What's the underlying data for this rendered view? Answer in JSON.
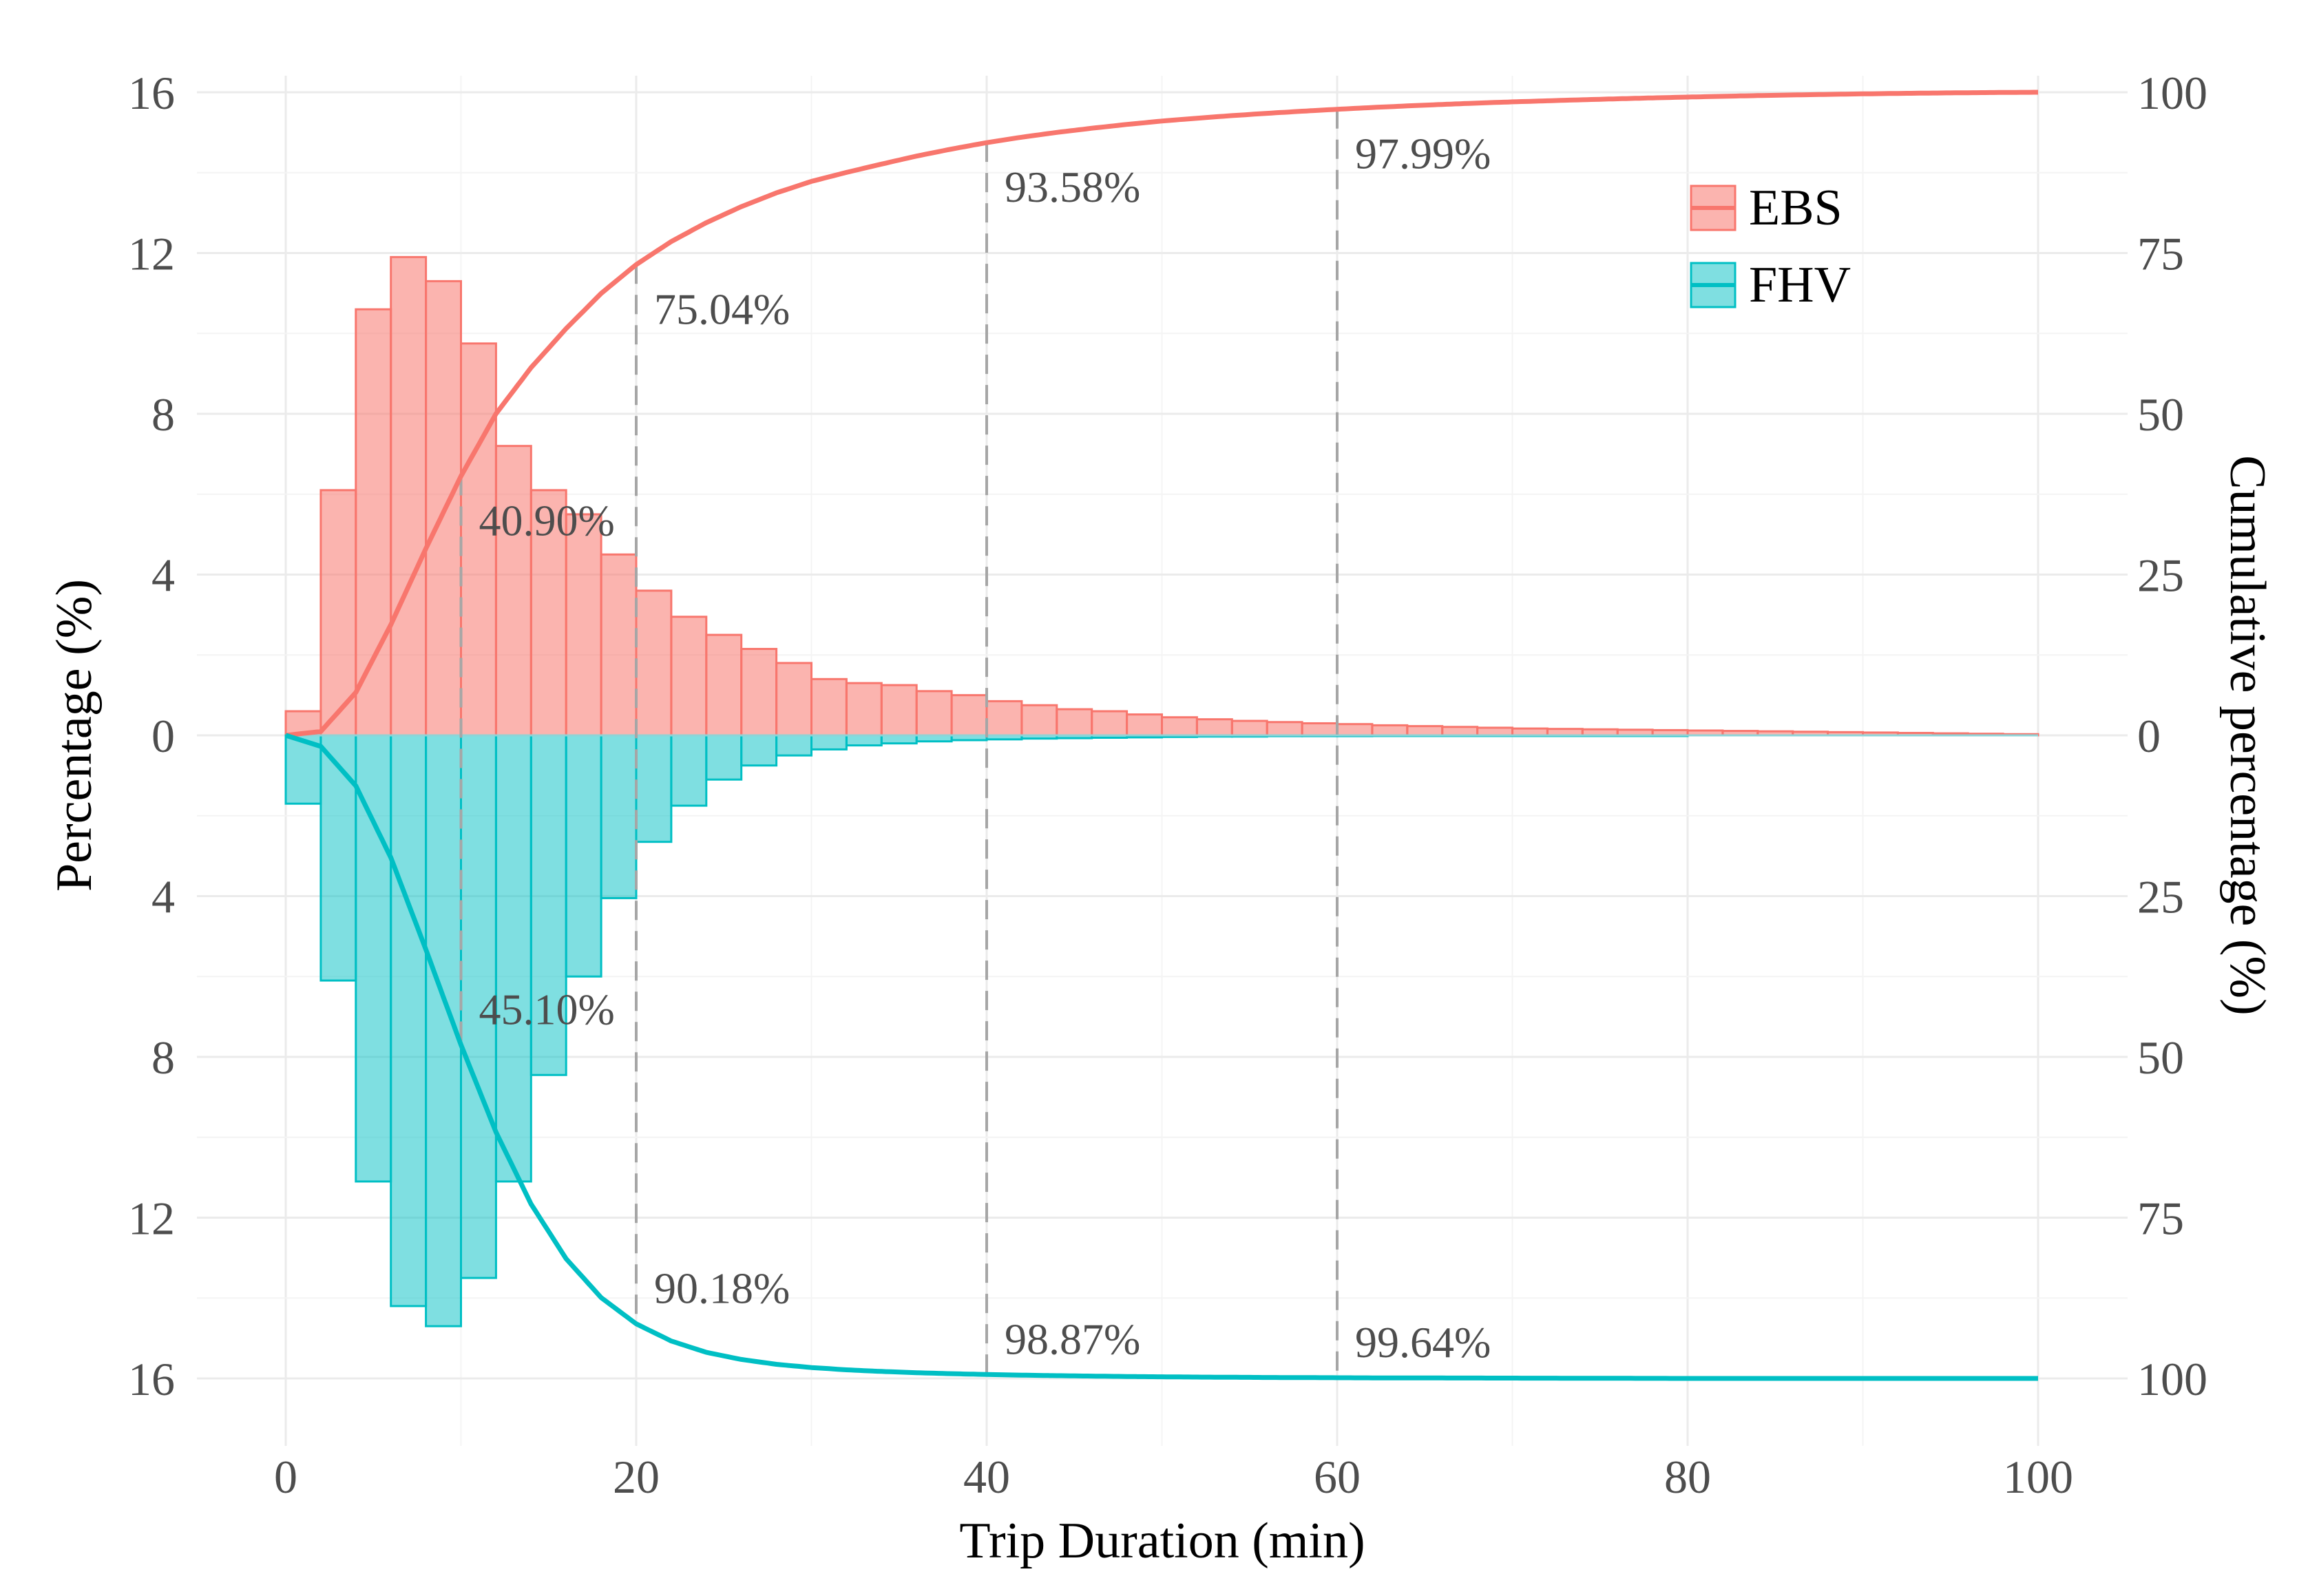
{
  "chart_data": {
    "type": "histogram-cumulative-mirror",
    "xlabel": "Trip Duration (min)",
    "ylabel_left": "Percentage (%)",
    "ylabel_right": "Cumulative percentage (%)",
    "xlim": [
      0,
      100
    ],
    "x_ticks": [
      "0",
      "20",
      "40",
      "60",
      "80",
      "100"
    ],
    "y_left_ticks": [
      "16",
      "12",
      "8",
      "4",
      "0",
      "4",
      "8",
      "12",
      "16"
    ],
    "y_right_ticks": [
      "100",
      "75",
      "50",
      "25",
      "0",
      "25",
      "50",
      "75",
      "100"
    ],
    "bin_width": 2,
    "series": [
      {
        "name": "EBS",
        "direction": "up",
        "fill": "#F8766D",
        "bars": [
          0.6,
          6.1,
          10.6,
          11.9,
          11.3,
          9.75,
          7.2,
          6.1,
          5.5,
          4.5,
          3.6,
          2.95,
          2.5,
          2.15,
          1.8,
          1.4,
          1.3,
          1.25,
          1.1,
          1.0,
          0.85,
          0.75,
          0.65,
          0.6,
          0.52,
          0.45,
          0.4,
          0.36,
          0.33,
          0.3,
          0.28,
          0.25,
          0.23,
          0.21,
          0.19,
          0.17,
          0.16,
          0.15,
          0.14,
          0.13,
          0.12,
          0.11,
          0.1,
          0.09,
          0.08,
          0.07,
          0.06,
          0.05,
          0.04,
          0.03
        ]
      },
      {
        "name": "FHV",
        "direction": "down",
        "fill": "#00BFC4",
        "bars": [
          1.7,
          6.1,
          11.1,
          14.2,
          14.7,
          13.5,
          11.1,
          8.45,
          6.0,
          4.05,
          2.65,
          1.75,
          1.1,
          0.75,
          0.5,
          0.35,
          0.25,
          0.2,
          0.15,
          0.12,
          0.1,
          0.08,
          0.07,
          0.06,
          0.05,
          0.04,
          0.03,
          0.03,
          0.02,
          0.02,
          0.02,
          0.01,
          0.01,
          0.01,
          0.01,
          0.01,
          0.01,
          0.01,
          0.01,
          0.01,
          0,
          0,
          0,
          0,
          0,
          0,
          0,
          0,
          0,
          0
        ]
      }
    ],
    "annotations": [
      {
        "series": "EBS",
        "x": 10,
        "label": "40.90%"
      },
      {
        "series": "EBS",
        "x": 20,
        "label": "75.04%"
      },
      {
        "series": "EBS",
        "x": 40,
        "label": "93.58%"
      },
      {
        "series": "EBS",
        "x": 60,
        "label": "97.99%"
      },
      {
        "series": "FHV",
        "x": 10,
        "label": "45.10%"
      },
      {
        "series": "FHV",
        "x": 20,
        "label": "90.18%"
      },
      {
        "series": "FHV",
        "x": 40,
        "label": "98.87%"
      },
      {
        "series": "FHV",
        "x": 60,
        "label": "99.64%"
      }
    ],
    "reference_lines_x": [
      10,
      20,
      40,
      60
    ],
    "legend": {
      "position": "top-right",
      "entries": [
        "EBS",
        "FHV"
      ]
    }
  }
}
